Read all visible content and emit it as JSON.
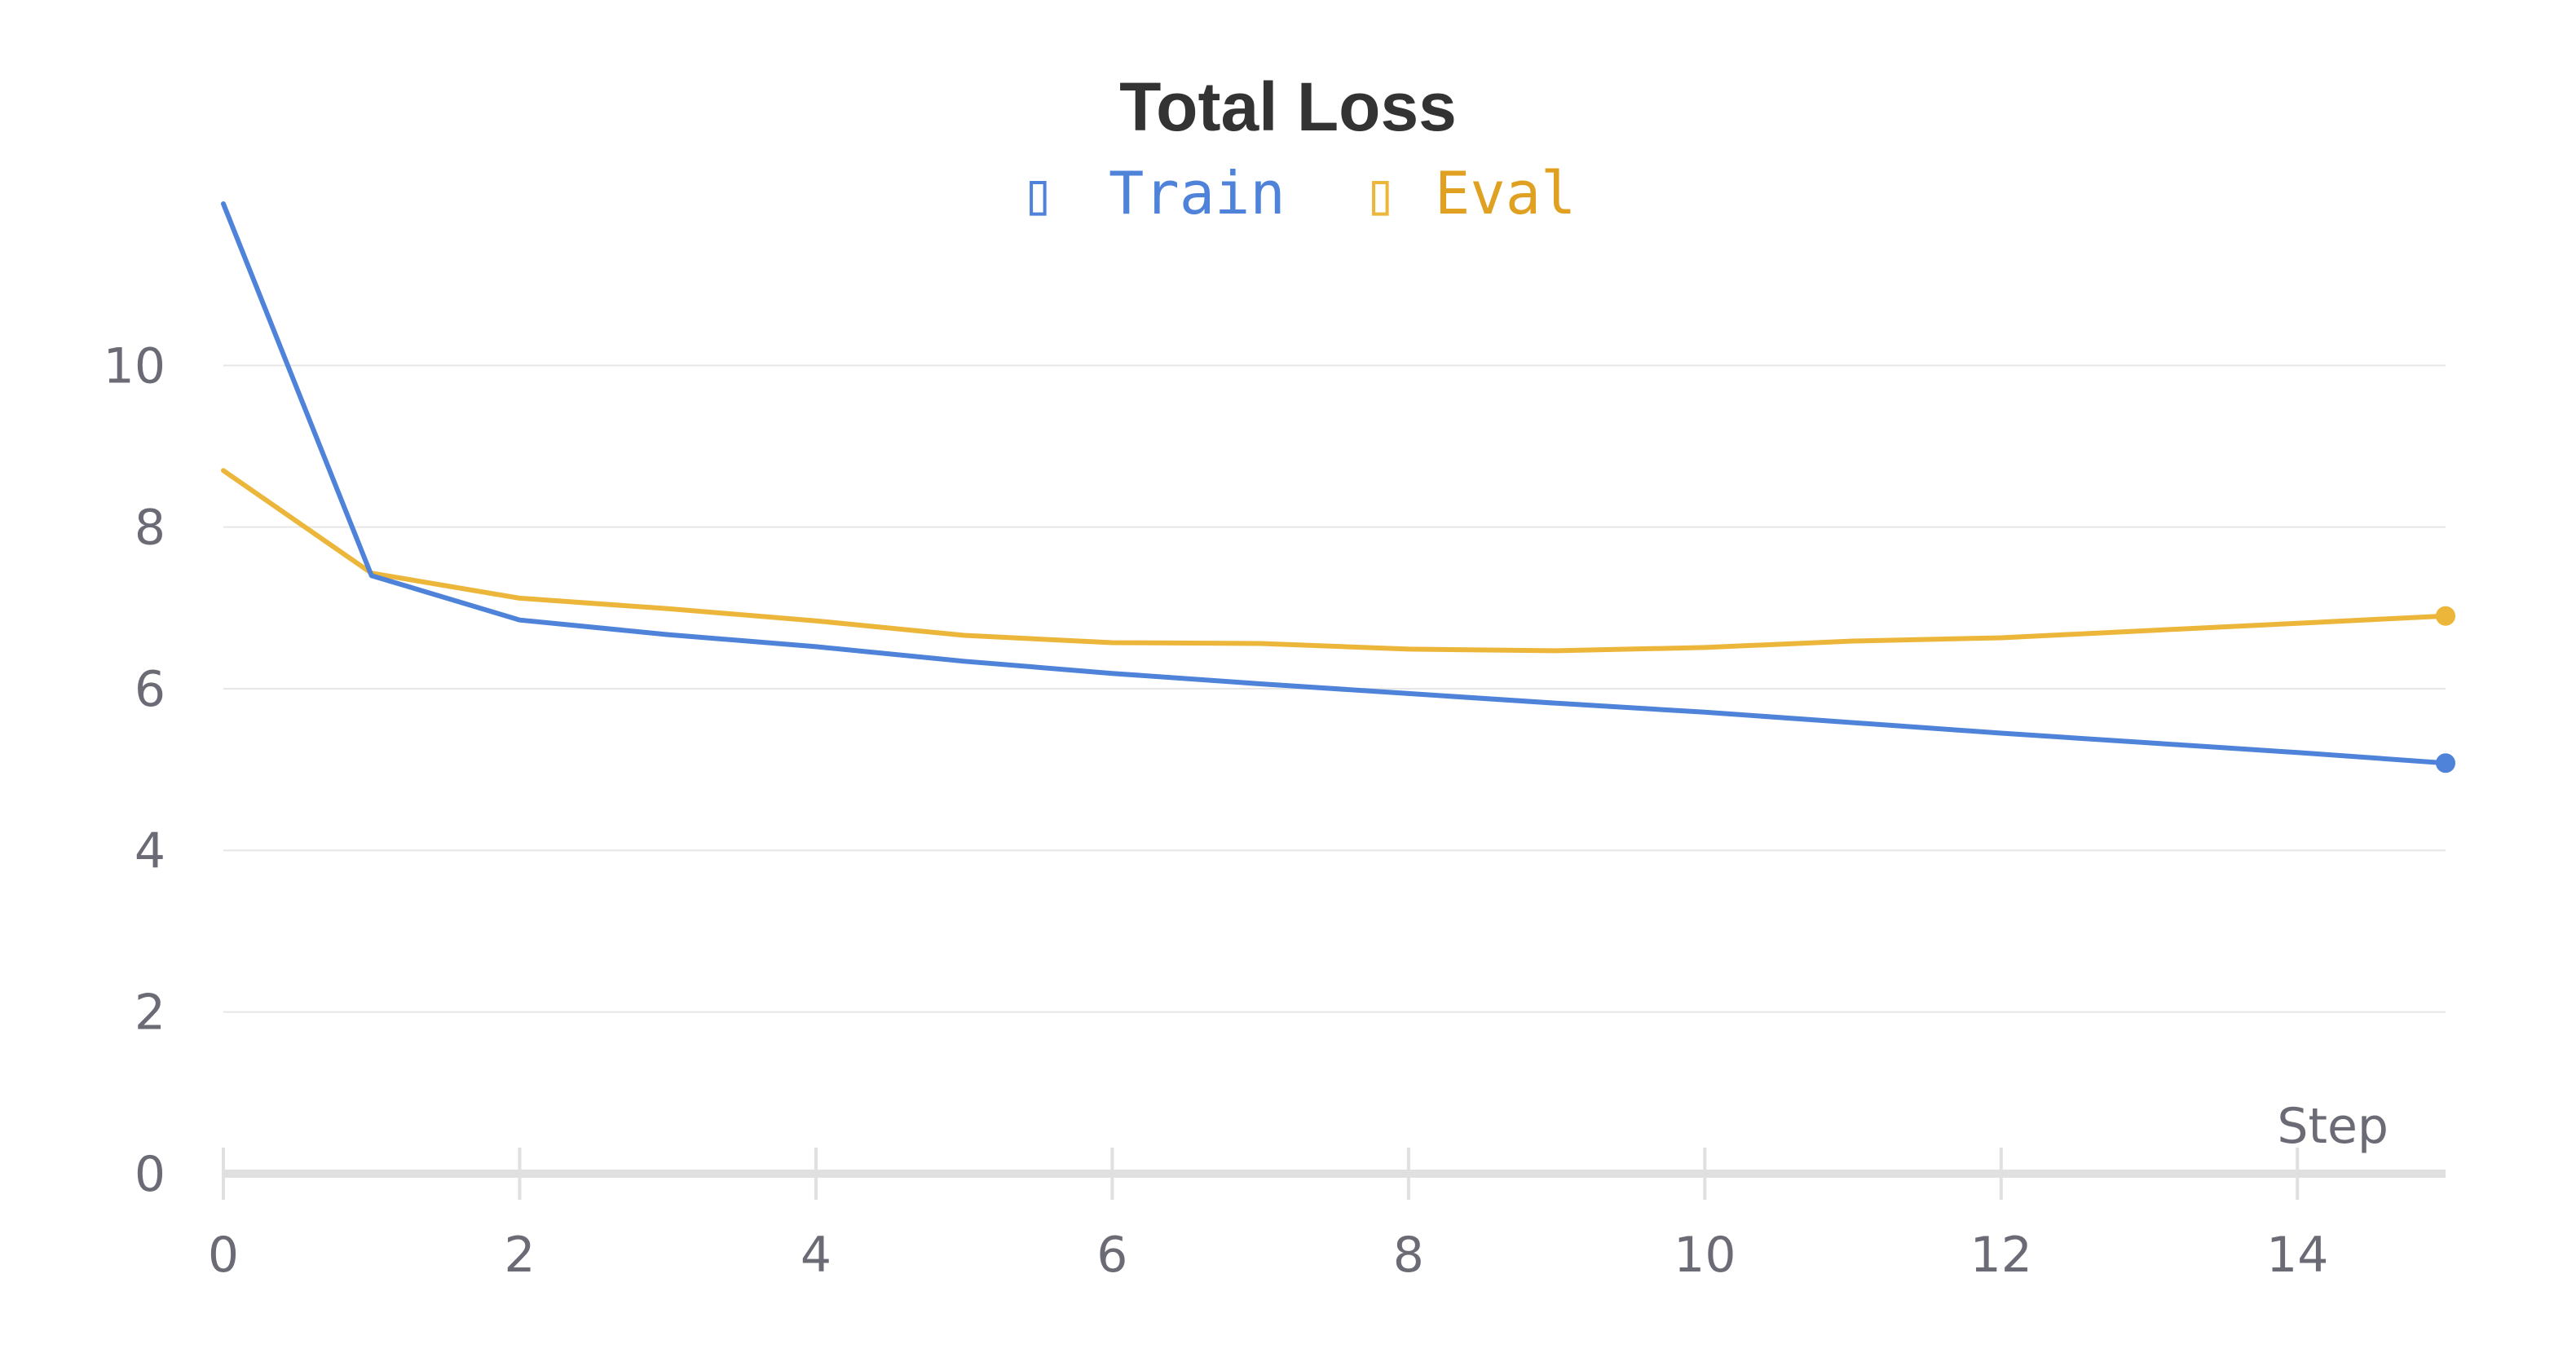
{
  "chart_data": {
    "type": "line",
    "title": "Total Loss",
    "xlabel": "Step",
    "ylabel": "",
    "xlim": [
      0,
      15
    ],
    "ylim": [
      0,
      12
    ],
    "xticks": [
      0,
      2,
      4,
      6,
      8,
      10,
      12,
      14
    ],
    "yticks": [
      0,
      2,
      4,
      6,
      8,
      10
    ],
    "grid": true,
    "legend_position": "top-center",
    "x": [
      0,
      1,
      2,
      3,
      4,
      5,
      6,
      7,
      8,
      9,
      10,
      11,
      12,
      13,
      14,
      15
    ],
    "series": [
      {
        "name": "Train",
        "color": "#4e83d9",
        "marker": "▯",
        "values": [
          12.0,
          7.4,
          6.85,
          6.67,
          6.52,
          6.34,
          6.19,
          6.06,
          5.94,
          5.82,
          5.71,
          5.58,
          5.45,
          5.33,
          5.21,
          5.08
        ]
      },
      {
        "name": "Eval",
        "color": "#ecb63a",
        "text_color": "#e0a122",
        "marker": "▯",
        "values": [
          8.7,
          7.43,
          7.12,
          6.99,
          6.84,
          6.66,
          6.57,
          6.56,
          6.49,
          6.47,
          6.51,
          6.59,
          6.63,
          6.72,
          6.81,
          6.9
        ]
      }
    ]
  }
}
